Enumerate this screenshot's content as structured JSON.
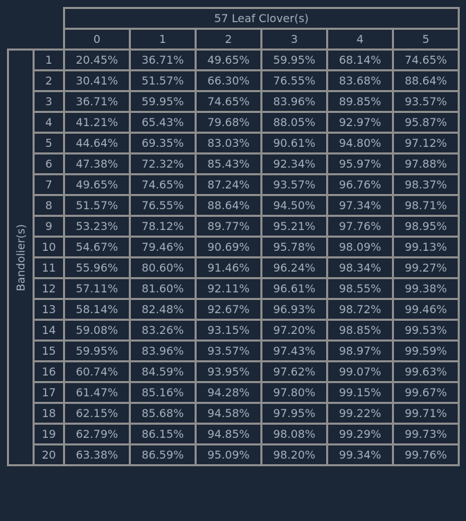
{
  "colors": {
    "background": "#1b2636",
    "border": "#8e8e8e",
    "text": "#a6b0bd"
  },
  "table": {
    "column_group_label": "57 Leaf Clover(s)",
    "row_group_label": "Bandolier(s)",
    "columns": [
      "0",
      "1",
      "2",
      "3",
      "4",
      "5"
    ],
    "rows": [
      {
        "label": "1",
        "values": [
          "20.45%",
          "36.71%",
          "49.65%",
          "59.95%",
          "68.14%",
          "74.65%"
        ]
      },
      {
        "label": "2",
        "values": [
          "30.41%",
          "51.57%",
          "66.30%",
          "76.55%",
          "83.68%",
          "88.64%"
        ]
      },
      {
        "label": "3",
        "values": [
          "36.71%",
          "59.95%",
          "74.65%",
          "83.96%",
          "89.85%",
          "93.57%"
        ]
      },
      {
        "label": "4",
        "values": [
          "41.21%",
          "65.43%",
          "79.68%",
          "88.05%",
          "92.97%",
          "95.87%"
        ]
      },
      {
        "label": "5",
        "values": [
          "44.64%",
          "69.35%",
          "83.03%",
          "90.61%",
          "94.80%",
          "97.12%"
        ]
      },
      {
        "label": "6",
        "values": [
          "47.38%",
          "72.32%",
          "85.43%",
          "92.34%",
          "95.97%",
          "97.88%"
        ]
      },
      {
        "label": "7",
        "values": [
          "49.65%",
          "74.65%",
          "87.24%",
          "93.57%",
          "96.76%",
          "98.37%"
        ]
      },
      {
        "label": "8",
        "values": [
          "51.57%",
          "76.55%",
          "88.64%",
          "94.50%",
          "97.34%",
          "98.71%"
        ]
      },
      {
        "label": "9",
        "values": [
          "53.23%",
          "78.12%",
          "89.77%",
          "95.21%",
          "97.76%",
          "98.95%"
        ]
      },
      {
        "label": "10",
        "values": [
          "54.67%",
          "79.46%",
          "90.69%",
          "95.78%",
          "98.09%",
          "99.13%"
        ]
      },
      {
        "label": "11",
        "values": [
          "55.96%",
          "80.60%",
          "91.46%",
          "96.24%",
          "98.34%",
          "99.27%"
        ]
      },
      {
        "label": "12",
        "values": [
          "57.11%",
          "81.60%",
          "92.11%",
          "96.61%",
          "98.55%",
          "99.38%"
        ]
      },
      {
        "label": "13",
        "values": [
          "58.14%",
          "82.48%",
          "92.67%",
          "96.93%",
          "98.72%",
          "99.46%"
        ]
      },
      {
        "label": "14",
        "values": [
          "59.08%",
          "83.26%",
          "93.15%",
          "97.20%",
          "98.85%",
          "99.53%"
        ]
      },
      {
        "label": "15",
        "values": [
          "59.95%",
          "83.96%",
          "93.57%",
          "97.43%",
          "98.97%",
          "99.59%"
        ]
      },
      {
        "label": "16",
        "values": [
          "60.74%",
          "84.59%",
          "93.95%",
          "97.62%",
          "99.07%",
          "99.63%"
        ]
      },
      {
        "label": "17",
        "values": [
          "61.47%",
          "85.16%",
          "94.28%",
          "97.80%",
          "99.15%",
          "99.67%"
        ]
      },
      {
        "label": "18",
        "values": [
          "62.15%",
          "85.68%",
          "94.58%",
          "97.95%",
          "99.22%",
          "99.71%"
        ]
      },
      {
        "label": "19",
        "values": [
          "62.79%",
          "86.15%",
          "94.85%",
          "98.08%",
          "99.29%",
          "99.73%"
        ]
      },
      {
        "label": "20",
        "values": [
          "63.38%",
          "86.59%",
          "95.09%",
          "98.20%",
          "99.34%",
          "99.76%"
        ]
      }
    ]
  }
}
